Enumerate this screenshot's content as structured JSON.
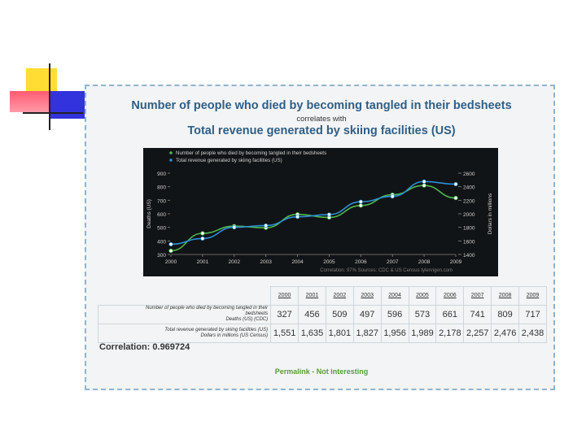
{
  "chart_data": {
    "type": "line",
    "title": "Number of people who died by becoming tangled in their bedsheets",
    "subtitle_connector": "correlates with",
    "subtitle": "Total revenue generated by skiing facilities (US)",
    "categories": [
      "2000",
      "2001",
      "2002",
      "2003",
      "2004",
      "2005",
      "2006",
      "2007",
      "2008",
      "2009"
    ],
    "series": [
      {
        "name": "Number of people who died by becoming tangled in their bedsheets",
        "axis": "left",
        "color": "#4fb84f",
        "values": [
          327,
          456,
          509,
          497,
          596,
          573,
          661,
          741,
          809,
          717
        ]
      },
      {
        "name": "Total revenue generated by skiing facilities (US)",
        "axis": "right",
        "color": "#2e8fd6",
        "values": [
          1551,
          1635,
          1801,
          1827,
          1956,
          1989,
          2178,
          2257,
          2476,
          2438
        ]
      }
    ],
    "ylabel_left": "Deaths (US)",
    "ylabel_right": "Dollars in millions",
    "ylim_left": [
      300,
      900
    ],
    "ylim_right": [
      1400,
      2600
    ],
    "yticks_left": [
      "300",
      "400",
      "500",
      "600",
      "700",
      "800",
      "900"
    ],
    "yticks_right": [
      "1400",
      "1600",
      "1800",
      "2000",
      "2200",
      "2400",
      "2600"
    ],
    "footer": "Correlation: 97%   Sources: CDC & US Census   tylervigen.com",
    "legend_position": "top-left",
    "grid": false
  },
  "table": {
    "years": [
      "2000",
      "2001",
      "2002",
      "2003",
      "2004",
      "2005",
      "2006",
      "2007",
      "2008",
      "2009"
    ],
    "row1_label_line1": "Number of people who died by becoming tangled in their",
    "row1_label_line2": "bedsheets",
    "row1_label_line3": "Deaths (US) (CDC)",
    "row1_values": [
      "327",
      "456",
      "509",
      "497",
      "596",
      "573",
      "661",
      "741",
      "809",
      "717"
    ],
    "row2_label_line1": "Total revenue generated by skiing facilities (US)",
    "row2_label_line2": "Dollars in millions (US Census)",
    "row2_values": [
      "1,551",
      "1,635",
      "1,801",
      "1,827",
      "1,956",
      "1,989",
      "2,178",
      "2,257",
      "2,476",
      "2,438"
    ]
  },
  "correlation_text": "Correlation: 0.969724",
  "permalink_text": "Permalink - Not interesting"
}
